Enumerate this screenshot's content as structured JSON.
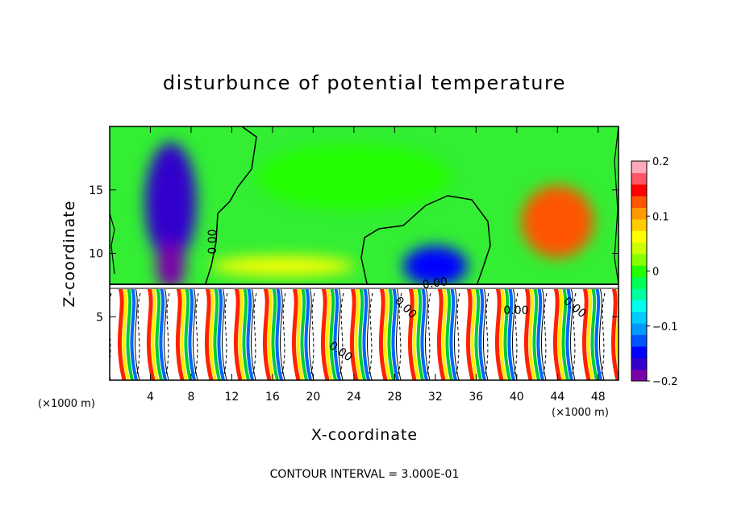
{
  "chart_data": {
    "type": "heatmap",
    "title": "disturbunce of potential temperature",
    "xlabel": "X-coordinate",
    "ylabel": "Z-coordinate",
    "x_unit": "(×1000 m)",
    "xlim": [
      0,
      50
    ],
    "ylim": [
      0,
      20
    ],
    "x_ticks": [
      4,
      8,
      12,
      16,
      20,
      24,
      28,
      32,
      36,
      40,
      44,
      48
    ],
    "y_ticks": [
      5,
      10,
      15
    ],
    "colorbar": {
      "range": [
        -0.2,
        0.2
      ],
      "ticks": [
        {
          "value": 0.2,
          "label": "0.2"
        },
        {
          "value": 0.1,
          "label": "0.1"
        },
        {
          "value": 0,
          "label": "0"
        },
        {
          "value": -0.1,
          "label": "−0.1"
        },
        {
          "value": -0.2,
          "label": "−0.2"
        }
      ],
      "colors": [
        "#7a00aa",
        "#3300cc",
        "#0000ff",
        "#0055ff",
        "#0099ff",
        "#00ccff",
        "#00ffee",
        "#00ffa0",
        "#00ff55",
        "#22ff00",
        "#88ff00",
        "#ccff00",
        "#ffff00",
        "#ffcc00",
        "#ff9900",
        "#ff5500",
        "#ff0000",
        "#ff5566",
        "#ffaabb"
      ]
    },
    "contour_labels": [
      "0.00",
      "0.00",
      "0.00",
      "0.00",
      "0.00",
      "0.00"
    ],
    "contour_interval": "CONTOUR INTERVAL = 3.000E-01",
    "features": [
      {
        "x": 6,
        "z": 14,
        "value": -0.17
      },
      {
        "x": 6,
        "z": 9,
        "value": -0.2
      },
      {
        "x": 17,
        "z": 9,
        "value": 0.06
      },
      {
        "x": 32,
        "z": 9,
        "value": -0.15
      },
      {
        "x": 44,
        "z": 12.5,
        "value": 0.12
      },
      {
        "x": 24,
        "z": 16,
        "value": 0.01
      }
    ]
  }
}
